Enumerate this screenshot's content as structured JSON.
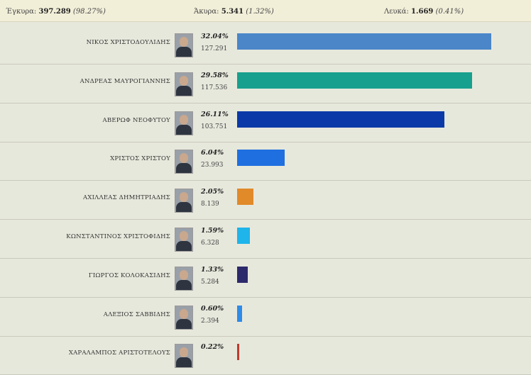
{
  "summary": {
    "valid_label": "Έγκυρα:",
    "valid_count": "397.289",
    "valid_pct": "(98.27%)",
    "invalid_label": "Άκυρα:",
    "invalid_count": "5.341",
    "invalid_pct": "(1.32%)",
    "blank_label": "Λευκά:",
    "blank_count": "1.669",
    "blank_pct": "(0.41%)"
  },
  "bar_scale_max_pct": 32.04,
  "candidates": [
    {
      "name": "ΝΙΚΟΣ ΧΡΙΣΤΟΔΟΥΛΙΔΗΣ",
      "pct": "32.04%",
      "pct_value": 32.04,
      "votes": "127.291",
      "color": "#4a86c8"
    },
    {
      "name": "ΑΝΔΡΕΑΣ ΜΑΥΡΟΓΙΑΝΝΗΣ",
      "pct": "29.58%",
      "pct_value": 29.58,
      "votes": "117.536",
      "color": "#17a08e"
    },
    {
      "name": "ΑΒΕΡΩΦ ΝΕΟΦΥΤΟΥ",
      "pct": "26.11%",
      "pct_value": 26.11,
      "votes": "103.751",
      "color": "#0b3aa8"
    },
    {
      "name": "ΧΡΙΣΤΟΣ ΧΡΙΣΤΟΥ",
      "pct": "6.04%",
      "pct_value": 6.04,
      "votes": "23.993",
      "color": "#1f6fe0"
    },
    {
      "name": "ΑΧΙΛΛΕΑΣ ΔΗΜΗΤΡΙΑΔΗΣ",
      "pct": "2.05%",
      "pct_value": 2.05,
      "votes": "8.139",
      "color": "#e08a2a"
    },
    {
      "name": "ΚΩΝΣΤΑΝΤΙΝΟΣ ΧΡΙΣΤΟΦΙΔΗΣ",
      "pct": "1.59%",
      "pct_value": 1.59,
      "votes": "6.328",
      "color": "#1fb4ea"
    },
    {
      "name": "ΓΙΩΡΓΟΣ ΚΟΛΟΚΑΣΙΔΗΣ",
      "pct": "1.33%",
      "pct_value": 1.33,
      "votes": "5.284",
      "color": "#2c2a6b"
    },
    {
      "name": "ΑΛΕΞΙΟΣ ΣΑΒΒΙΔΗΣ",
      "pct": "0.60%",
      "pct_value": 0.6,
      "votes": "2.394",
      "color": "#2e8be8"
    },
    {
      "name": "ΧΑΡΑΛΑΜΠΟΣ ΑΡΙΣΤΟΤΕΛΟΥΣ",
      "pct": "0.22%",
      "pct_value": 0.22,
      "votes": "",
      "color": "#c0392b"
    }
  ]
}
